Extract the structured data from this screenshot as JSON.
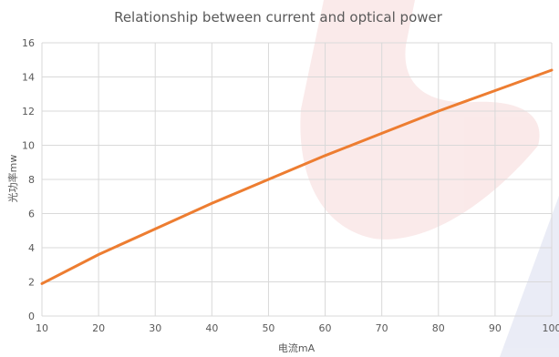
{
  "chart_data": {
    "type": "line",
    "title": "Relationship between current and optical power",
    "xlabel": "电流mA",
    "ylabel": "光功率mw",
    "xlim": [
      10,
      100
    ],
    "ylim": [
      0,
      16
    ],
    "x_ticks": [
      "10",
      "20",
      "30",
      "40",
      "50",
      "60",
      "70",
      "80",
      "90",
      "100"
    ],
    "y_ticks": [
      "0",
      "2",
      "4",
      "6",
      "8",
      "10",
      "12",
      "14",
      "16"
    ],
    "grid": true,
    "legend": "none",
    "series": [
      {
        "color": "#ED7D31",
        "x": [
          10,
          20,
          30,
          40,
          50,
          60,
          70,
          80,
          90,
          100
        ],
        "y": [
          1.9,
          3.6,
          5.1,
          6.6,
          8.0,
          9.4,
          10.7,
          12.0,
          13.2,
          14.4
        ]
      }
    ]
  },
  "colors": {
    "line": "#ED7D31",
    "grid": "#D9D9D9",
    "text": "#595959"
  }
}
